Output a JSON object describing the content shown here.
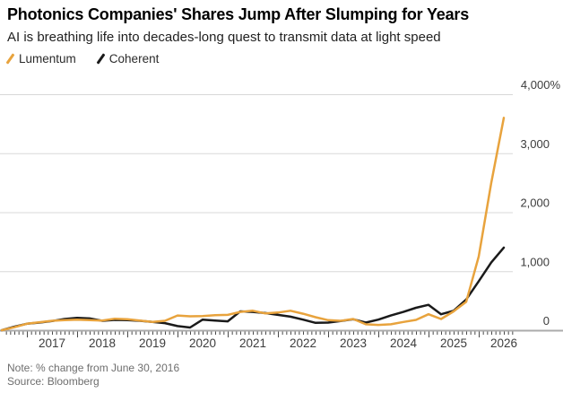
{
  "header": {
    "title": "Photonics Companies' Shares Jump After Slumping for Years",
    "subtitle": "AI is breathing life into decades-long quest to transmit data at light speed"
  },
  "legend": {
    "items": [
      {
        "label": "Lumentum",
        "color": "#E8A33D"
      },
      {
        "label": "Coherent",
        "color": "#1A1A1A"
      }
    ]
  },
  "footer": {
    "note": "Note: % change from June 30, 2016",
    "source": "Source: Bloomberg"
  },
  "colors": {
    "lumentum_line": "#E8A33D",
    "coherent_line": "#1A1A1A",
    "gridline": "#D8D8D8",
    "axis_baseline": "#ABABAB",
    "tick": "#4A4A4A",
    "axis_label": "#3C3C3C"
  },
  "chart_data": {
    "type": "line",
    "title": "Photonics Companies' Shares Jump After Slumping for Years",
    "subtitle": "AI is breathing life into decades-long quest to transmit data at light speed",
    "note": "% change from June 30, 2016",
    "source": "Bloomberg",
    "unit": "percent change since 2016-06-30",
    "grid": "horizontal",
    "legend_position": "top-left",
    "xlim": [
      2016.5,
      2027.0
    ],
    "ylim": [
      0,
      4000
    ],
    "x_years": [
      2016.5,
      2016.75,
      2017.0,
      2017.25,
      2017.5,
      2017.75,
      2018.0,
      2018.25,
      2018.5,
      2018.75,
      2019.0,
      2019.25,
      2019.5,
      2019.75,
      2020.0,
      2020.25,
      2020.5,
      2020.75,
      2021.0,
      2021.25,
      2021.5,
      2021.75,
      2022.0,
      2022.25,
      2022.5,
      2022.75,
      2023.0,
      2023.25,
      2023.5,
      2023.75,
      2024.0,
      2024.25,
      2024.5,
      2024.75,
      2025.0,
      2025.25,
      2025.5,
      2025.75,
      2026.0,
      2026.25,
      2026.5
    ],
    "series": [
      {
        "name": "Lumentum",
        "color": "#E8A33D",
        "values": [
          0,
          50,
          110,
          135,
          160,
          170,
          180,
          170,
          165,
          195,
          185,
          165,
          140,
          160,
          250,
          235,
          240,
          255,
          260,
          310,
          330,
          285,
          300,
          330,
          280,
          220,
          170,
          160,
          190,
          100,
          90,
          100,
          140,
          175,
          270,
          190,
          320,
          480,
          1250,
          2500,
          3600
        ]
      },
      {
        "name": "Coherent",
        "color": "#1A1A1A",
        "values": [
          0,
          60,
          110,
          130,
          155,
          190,
          210,
          200,
          160,
          175,
          170,
          160,
          140,
          120,
          70,
          45,
          180,
          165,
          150,
          320,
          310,
          290,
          260,
          230,
          180,
          125,
          130,
          155,
          185,
          130,
          180,
          250,
          310,
          380,
          430,
          270,
          330,
          520,
          830,
          1150,
          1400
        ]
      }
    ],
    "x_tick_labels": [
      "2017",
      "2018",
      "2019",
      "2020",
      "2021",
      "2022",
      "2023",
      "2024",
      "2025",
      "2026"
    ],
    "y_ticks": [
      {
        "value": 0,
        "label": "0"
      },
      {
        "value": 1000,
        "label": "1,000"
      },
      {
        "value": 2000,
        "label": "2,000"
      },
      {
        "value": 3000,
        "label": "3,000"
      },
      {
        "value": 4000,
        "label": "4,000%"
      }
    ]
  }
}
